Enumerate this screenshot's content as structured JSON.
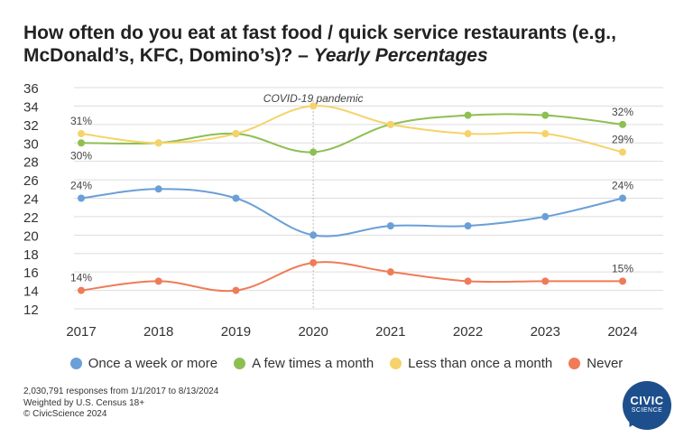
{
  "title_main": "How often do you eat at fast food / quick service restaurants (e.g., McDonald’s, KFC, Domino’s)? –",
  "title_italic": "Yearly Percentages",
  "chart_data": {
    "type": "line",
    "x": [
      "2017",
      "2018",
      "2019",
      "2020",
      "2021",
      "2022",
      "2023",
      "2024"
    ],
    "ylim": [
      12,
      36
    ],
    "yticks": [
      12,
      14,
      16,
      18,
      20,
      22,
      24,
      26,
      28,
      30,
      32,
      34,
      36
    ],
    "grid": true,
    "legend_position": "bottom",
    "series": [
      {
        "name": "Once a week or more",
        "color": "#6a9fd8",
        "values": [
          24,
          25,
          24,
          20,
          21,
          21,
          22,
          24
        ]
      },
      {
        "name": "A few times a month",
        "color": "#8ebf52",
        "values": [
          30,
          30,
          31,
          29,
          32,
          33,
          33,
          32
        ]
      },
      {
        "name": "Less than once a month",
        "color": "#f5d36a",
        "values": [
          31,
          30,
          31,
          34,
          32,
          31,
          31,
          29
        ]
      },
      {
        "name": "Never",
        "color": "#ef7b58",
        "values": [
          14,
          15,
          14,
          17,
          16,
          15,
          15,
          15
        ]
      }
    ],
    "data_labels": [
      {
        "series": 0,
        "index": 0,
        "text": "24%",
        "pos": "above"
      },
      {
        "series": 0,
        "index": 7,
        "text": "24%",
        "pos": "above"
      },
      {
        "series": 1,
        "index": 0,
        "text": "30%",
        "pos": "below"
      },
      {
        "series": 1,
        "index": 7,
        "text": "32%",
        "pos": "above"
      },
      {
        "series": 2,
        "index": 0,
        "text": "31%",
        "pos": "above"
      },
      {
        "series": 2,
        "index": 7,
        "text": "29%",
        "pos": "above"
      },
      {
        "series": 3,
        "index": 0,
        "text": "14%",
        "pos": "above"
      },
      {
        "series": 3,
        "index": 7,
        "text": "15%",
        "pos": "above"
      }
    ],
    "annotation": {
      "text": "COVID-19 pandemic",
      "x": "2020"
    }
  },
  "footnote": {
    "line1": "2,030,791 responses from 1/1/2017 to 8/13/2024",
    "line2": "Weighted by U.S. Census 18+",
    "line3": "© CivicScience 2024"
  },
  "logo": {
    "line1": "CIVIC",
    "line2": "SCIENCE"
  }
}
